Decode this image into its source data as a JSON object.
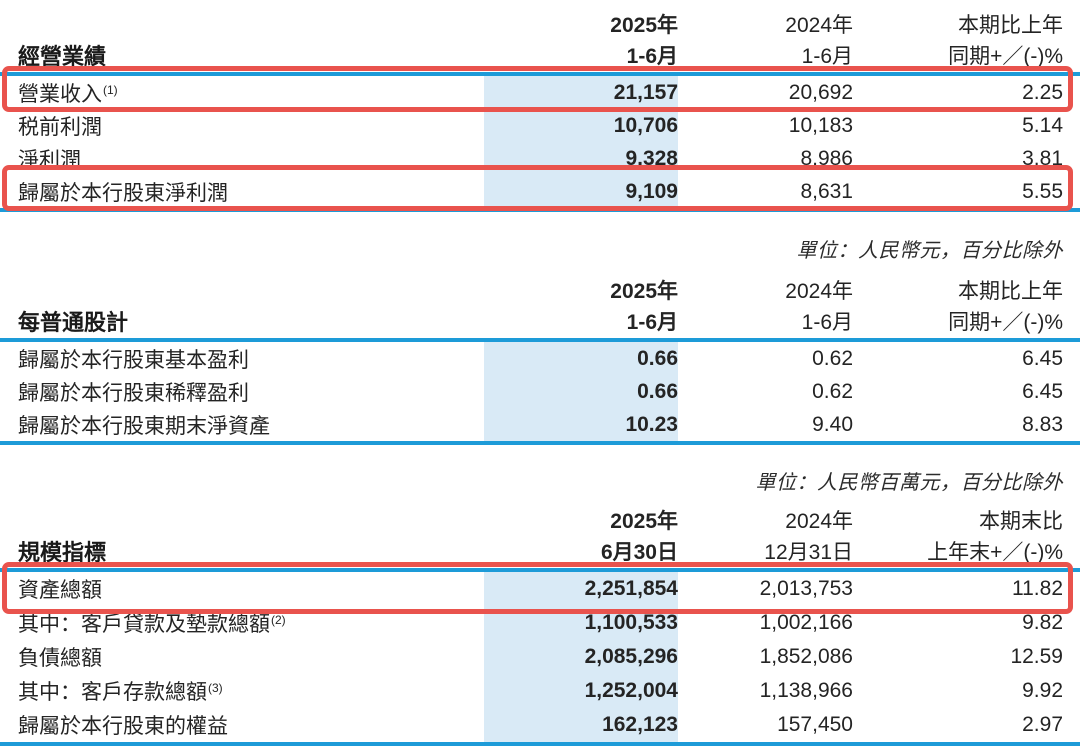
{
  "page": {
    "colors": {
      "rule_cyan": "#1d9bd8",
      "highlight_column_bg": "#d9eaf6",
      "annotation_red": "#e9534d",
      "text": "#242424"
    }
  },
  "sections": [
    {
      "title": "經營業績",
      "unit_note": "",
      "columns": {
        "c1l1": "2025年",
        "c1l2": "1-6月",
        "c2l1": "2024年",
        "c2l2": "1-6月",
        "c3l1": "本期比上年",
        "c3l2": "同期+／(-)%"
      },
      "rows": [
        {
          "label": "營業收入",
          "sup": "(1)",
          "current": "21,157",
          "prior": "20,692",
          "change": "2.25"
        },
        {
          "label": "税前利潤",
          "sup": "",
          "current": "10,706",
          "prior": "10,183",
          "change": "5.14"
        },
        {
          "label": "淨利潤",
          "sup": "",
          "current": "9,328",
          "prior": "8,986",
          "change": "3.81"
        },
        {
          "label": "歸屬於本行股東淨利潤",
          "sup": "",
          "current": "9,109",
          "prior": "8,631",
          "change": "5.55"
        }
      ]
    },
    {
      "title": "每普通股計",
      "unit_note": "單位：人民幣元，百分比除外",
      "columns": {
        "c1l1": "2025年",
        "c1l2": "1-6月",
        "c2l1": "2024年",
        "c2l2": "1-6月",
        "c3l1": "本期比上年",
        "c3l2": "同期+／(-)%"
      },
      "rows": [
        {
          "label": "歸屬於本行股東基本盈利",
          "sup": "",
          "current": "0.66",
          "prior": "0.62",
          "change": "6.45"
        },
        {
          "label": "歸屬於本行股東稀釋盈利",
          "sup": "",
          "current": "0.66",
          "prior": "0.62",
          "change": "6.45"
        },
        {
          "label": "歸屬於本行股東期末淨資產",
          "sup": "",
          "current": "10.23",
          "prior": "9.40",
          "change": "8.83"
        }
      ]
    },
    {
      "title": "規模指標",
      "unit_note": "單位：人民幣百萬元，百分比除外",
      "columns": {
        "c1l1": "2025年",
        "c1l2": "6月30日",
        "c2l1": "2024年",
        "c2l2": "12月31日",
        "c3l1": "本期末比",
        "c3l2": "上年末+／(-)%"
      },
      "rows": [
        {
          "label": "資產總額",
          "sup": "",
          "current": "2,251,854",
          "prior": "2,013,753",
          "change": "11.82"
        },
        {
          "label": "其中：客戶貸款及墊款總額",
          "sup": "(2)",
          "current": "1,100,533",
          "prior": "1,002,166",
          "change": "9.82"
        },
        {
          "label": "負債總額",
          "sup": "",
          "current": "2,085,296",
          "prior": "1,852,086",
          "change": "12.59"
        },
        {
          "label": "其中：客戶存款總額",
          "sup": "(3)",
          "current": "1,252,004",
          "prior": "1,138,966",
          "change": "9.92"
        },
        {
          "label": "歸屬於本行股東的權益",
          "sup": "",
          "current": "162,123",
          "prior": "157,450",
          "change": "2.97"
        }
      ]
    }
  ],
  "annotations": {
    "boxed_rows": [
      "營業收入",
      "歸屬於本行股東淨利潤",
      "資產總額"
    ]
  }
}
